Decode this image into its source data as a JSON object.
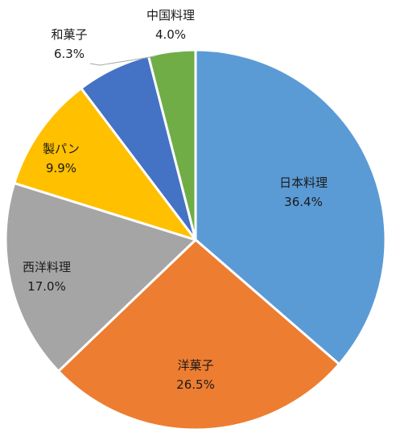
{
  "chart_data": {
    "type": "pie",
    "title": "",
    "start_angle_deg": 0,
    "direction": "clockwise",
    "slices": [
      {
        "label": "日本料理",
        "value": 36.4,
        "value_label": "36.4%",
        "color": "#5b9bd5"
      },
      {
        "label": "洋菓子",
        "value": 26.5,
        "value_label": "26.5%",
        "color": "#ed7d31"
      },
      {
        "label": "西洋料理",
        "value": 17.0,
        "value_label": "17.0%",
        "color": "#a5a5a5"
      },
      {
        "label": "製パン",
        "value": 9.9,
        "value_label": "9.9%",
        "color": "#ffc000"
      },
      {
        "label": "和菓子",
        "value": 6.3,
        "value_label": "6.3%",
        "color": "#4472c4"
      },
      {
        "label": "中国料理",
        "value": 4.0,
        "value_label": "4.0%",
        "color": "#70ad47"
      }
    ],
    "legend": "none"
  }
}
